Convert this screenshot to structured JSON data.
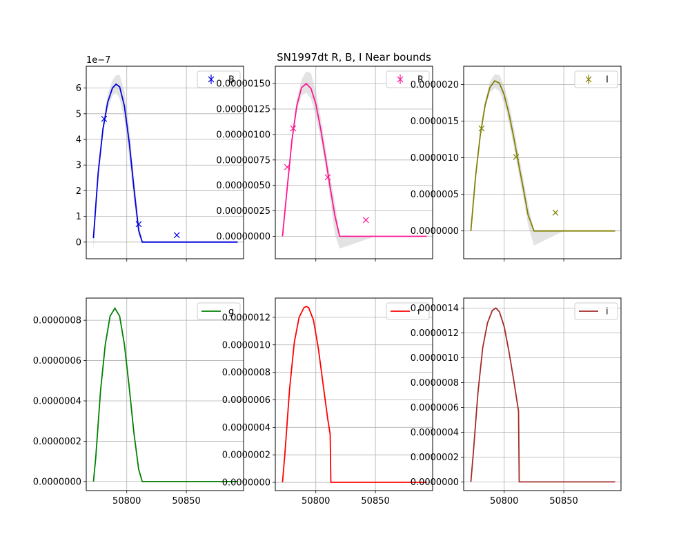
{
  "title": "SN1997dt  R, B, I Near bounds",
  "chart_data": [
    {
      "type": "line",
      "legend": "B",
      "legend_kind": "errorbar",
      "legend_position": "top-right",
      "color": "#0000dd",
      "grid": true,
      "xlim": [
        50766,
        50898
      ],
      "ylim": [
        -0.65,
        6.85
      ],
      "y_offset_label": "1e−7",
      "xticks": [
        50800,
        50850
      ],
      "xtick_labels": [
        "",
        ""
      ],
      "yticks": [
        0,
        1,
        2,
        3,
        4,
        5,
        6
      ],
      "ytick_labels": [
        "0",
        "1",
        "2",
        "3",
        "4",
        "5",
        "6"
      ],
      "curve": {
        "x": [
          50772,
          50776,
          50780,
          50784,
          50788,
          50791,
          50794,
          50798,
          50802,
          50806,
          50810,
          50813,
          50820,
          50850,
          50893
        ],
        "y": [
          0.15,
          2.7,
          4.4,
          5.45,
          6.0,
          6.15,
          6.05,
          5.3,
          3.9,
          2.1,
          0.45,
          0,
          0,
          0,
          0
        ]
      },
      "band": {
        "x": [
          50772,
          50776,
          50780,
          50784,
          50788,
          50791,
          50794,
          50798,
          50802,
          50806,
          50810,
          50813,
          50820,
          50850,
          50893
        ],
        "low": [
          -0.35,
          2.4,
          4.2,
          5.2,
          5.7,
          5.8,
          5.6,
          4.75,
          3.3,
          1.55,
          0.25,
          0,
          0,
          0,
          0
        ],
        "high": [
          0.5,
          3.0,
          4.6,
          5.75,
          6.3,
          6.5,
          6.5,
          5.9,
          4.5,
          2.6,
          0.75,
          0.05,
          0,
          0,
          0
        ]
      },
      "points": {
        "x": [
          50781,
          50810,
          50842
        ],
        "y": [
          4.8,
          0.7,
          0.27
        ]
      }
    },
    {
      "type": "line",
      "legend": "R",
      "legend_kind": "errorbar",
      "legend_position": "top-right",
      "color": "#ff1493",
      "grid": true,
      "xlim": [
        50766,
        50898
      ],
      "ylim": [
        -2.2e-07,
        1.67e-06
      ],
      "xticks": [
        50800,
        50850
      ],
      "xtick_labels": [
        "",
        ""
      ],
      "yticks": [
        0,
        2.5e-07,
        5e-07,
        7.5e-07,
        1e-06,
        1.25e-06,
        1.5e-06
      ],
      "ytick_labels": [
        "0.00000000",
        "0.00000025",
        "0.00000050",
        "0.00000075",
        "0.00000100",
        "0.00000125",
        "0.00000150"
      ],
      "curve": {
        "x": [
          50772,
          50776,
          50780,
          50784,
          50788,
          50792,
          50796,
          50800,
          50804,
          50808,
          50812,
          50816,
          50820,
          50850,
          50893
        ],
        "y": [
          0.0,
          4.8e-07,
          9.5e-07,
          1.28e-06,
          1.46e-06,
          1.5e-06,
          1.45e-06,
          1.3e-06,
          1.06e-06,
          7.8e-07,
          4.8e-07,
          2e-07,
          0.0,
          0.0,
          0.0
        ]
      },
      "band": {
        "x": [
          50772,
          50776,
          50780,
          50784,
          50788,
          50792,
          50796,
          50800,
          50804,
          50808,
          50812,
          50816,
          50820,
          50850,
          50893
        ],
        "low": [
          -2e-08,
          4.5e-07,
          9e-07,
          1.23e-06,
          1.38e-06,
          1.41e-06,
          1.35e-06,
          1.18e-06,
          9.6e-07,
          7e-07,
          3.7e-07,
          2e-08,
          -1.2e-07,
          0.0,
          0.0
        ],
        "high": [
          2e-08,
          5.1e-07,
          1e-06,
          1.34e-06,
          1.54e-06,
          1.62e-06,
          1.6e-06,
          1.42e-06,
          1.18e-06,
          8.8e-07,
          5.8e-07,
          3.4e-07,
          0.0,
          0.0,
          0.0
        ]
      },
      "points": {
        "x": [
          50776,
          50781,
          50810,
          50842
        ],
        "y": [
          6.8e-07,
          1.06e-06,
          5.8e-07,
          1.6e-07
        ]
      }
    },
    {
      "type": "line",
      "legend": "I",
      "legend_kind": "errorbar",
      "legend_position": "top-right",
      "color": "#808000",
      "grid": true,
      "xlim": [
        50766,
        50898
      ],
      "ylim": [
        -3.8e-07,
        2.25e-06
      ],
      "xticks": [
        50800,
        50850
      ],
      "xtick_labels": [
        "",
        ""
      ],
      "yticks": [
        0,
        5e-07,
        1e-06,
        1.5e-06,
        2e-06
      ],
      "ytick_labels": [
        "0.0000000",
        "0.0000005",
        "0.0000010",
        "0.0000015",
        "0.0000020"
      ],
      "curve": {
        "x": [
          50772,
          50776,
          50780,
          50784,
          50788,
          50792,
          50796,
          50800,
          50804,
          50808,
          50812,
          50816,
          50820,
          50825,
          50850,
          50893
        ],
        "y": [
          0.0,
          7.5e-07,
          1.32e-06,
          1.72e-06,
          1.96e-06,
          2.05e-06,
          2.02e-06,
          1.86e-06,
          1.6e-06,
          1.28e-06,
          9.2e-07,
          5.8e-07,
          2.2e-07,
          0.0,
          0.0,
          0.0
        ]
      },
      "band": {
        "x": [
          50772,
          50776,
          50780,
          50784,
          50788,
          50792,
          50796,
          50800,
          50804,
          50808,
          50812,
          50816,
          50820,
          50825,
          50850,
          50893
        ],
        "low": [
          0.0,
          7.2e-07,
          1.28e-06,
          1.67e-06,
          1.89e-06,
          1.95e-06,
          1.91e-06,
          1.74e-06,
          1.48e-06,
          1.16e-06,
          8e-07,
          4.5e-07,
          8e-08,
          -2e-07,
          0.0,
          0.0
        ],
        "high": [
          0.0,
          7.8e-07,
          1.36e-06,
          1.78e-06,
          2.04e-06,
          2.14e-06,
          2.13e-06,
          1.99e-06,
          1.74e-06,
          1.42e-06,
          1.06e-06,
          7.2e-07,
          3.6e-07,
          0.0,
          0.0,
          0.0
        ]
      },
      "points": {
        "x": [
          50781,
          50810,
          50843
        ],
        "y": [
          1.4e-06,
          1.01e-06,
          2.5e-07
        ]
      }
    },
    {
      "type": "line",
      "legend": "g",
      "legend_kind": "line",
      "legend_position": "top-right",
      "color": "#008000",
      "grid": true,
      "xlim": [
        50766,
        50898
      ],
      "ylim": [
        -4.5e-08,
        9.1e-07
      ],
      "xticks": [
        50800,
        50850
      ],
      "xtick_labels": [
        "50800",
        "50850"
      ],
      "yticks": [
        0,
        2e-07,
        4e-07,
        6e-07,
        8e-07
      ],
      "ytick_labels": [
        "0.0000000",
        "0.0000002",
        "0.0000004",
        "0.0000006",
        "0.0000008"
      ],
      "curve": {
        "x": [
          50772,
          50774,
          50778,
          50782,
          50786,
          50790,
          50794,
          50798,
          50802,
          50806,
          50810,
          50813,
          50820,
          50850,
          50893
        ],
        "y": [
          0.0,
          1.2e-07,
          4.5e-07,
          6.8e-07,
          8.2e-07,
          8.6e-07,
          8.2e-07,
          6.8e-07,
          4.7e-07,
          2.4e-07,
          6e-08,
          0.0,
          0.0,
          0.0,
          0.0
        ]
      }
    },
    {
      "type": "line",
      "legend": "r",
      "legend_kind": "line",
      "legend_position": "top-right",
      "color": "#ff0000",
      "grid": true,
      "xlim": [
        50766,
        50898
      ],
      "ylim": [
        -6e-08,
        1.34e-06
      ],
      "xticks": [
        50800,
        50850
      ],
      "xtick_labels": [
        "50800",
        "50850"
      ],
      "yticks": [
        0,
        2e-07,
        4e-07,
        6e-07,
        8e-07,
        1e-06,
        1.2e-06
      ],
      "ytick_labels": [
        "0.0000000",
        "0.0000002",
        "0.0000004",
        "0.0000006",
        "0.0000008",
        "0.0000010",
        "0.0000012"
      ],
      "curve": {
        "x": [
          50772,
          50774,
          50778,
          50782,
          50786,
          50790,
          50792,
          50794,
          50798,
          50802,
          50806,
          50810,
          50812,
          50812.6,
          50820,
          50850,
          50893
        ],
        "y": [
          0.0,
          2e-07,
          6.8e-07,
          1.02e-06,
          1.2e-06,
          1.27e-06,
          1.28e-06,
          1.27e-06,
          1.18e-06,
          9.8e-07,
          7.2e-07,
          4.6e-07,
          3.5e-07,
          0.0,
          0.0,
          0.0,
          0.0
        ]
      }
    },
    {
      "type": "line",
      "legend": "i",
      "legend_kind": "line",
      "legend_position": "top-right",
      "color": "#a52a2a",
      "grid": true,
      "xlim": [
        50766,
        50898
      ],
      "ylim": [
        -7e-08,
        1.48e-06
      ],
      "xticks": [
        50800,
        50850
      ],
      "xtick_labels": [
        "50800",
        "50850"
      ],
      "yticks": [
        0,
        2e-07,
        4e-07,
        6e-07,
        8e-07,
        1e-06,
        1.2e-06,
        1.4e-06
      ],
      "ytick_labels": [
        "0.0000000",
        "0.0000002",
        "0.0000004",
        "0.0000006",
        "0.0000008",
        "0.0000010",
        "0.0000012",
        "0.0000014"
      ],
      "curve": {
        "x": [
          50772,
          50774,
          50778,
          50782,
          50786,
          50790,
          50793,
          50796,
          50800,
          50804,
          50808,
          50812,
          50812.6,
          50820,
          50850,
          50893
        ],
        "y": [
          0.0,
          2.2e-07,
          7.2e-07,
          1.08e-06,
          1.28e-06,
          1.38e-06,
          1.4e-06,
          1.37e-06,
          1.25e-06,
          1.05e-06,
          8.2e-07,
          5.7e-07,
          0.0,
          0.0,
          0.0,
          0.0
        ]
      }
    }
  ]
}
